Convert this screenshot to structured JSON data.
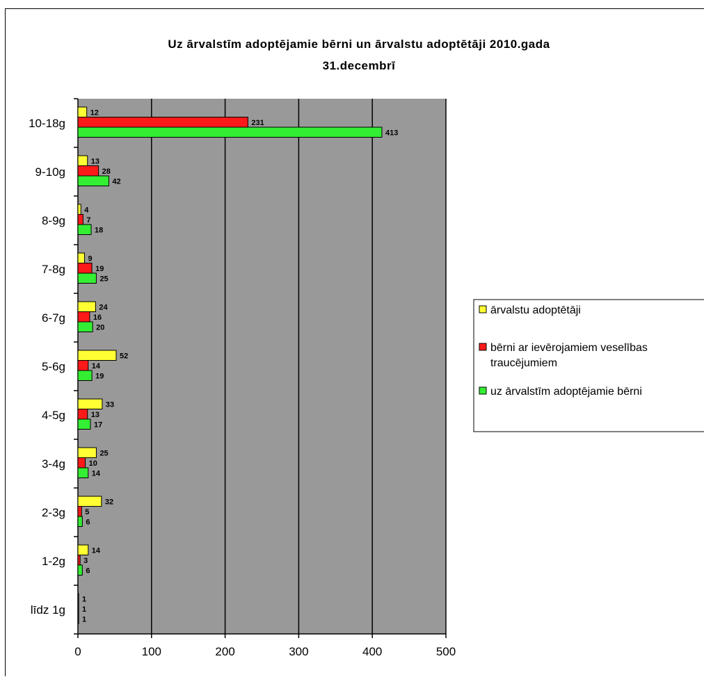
{
  "chart_data": {
    "type": "bar",
    "orientation": "horizontal",
    "title_lines": [
      "Uz ārvalstīm adoptējamie bērni un ārvalstu adoptētāji 2010.gada",
      "31.decembrī"
    ],
    "categories": [
      "10-18g",
      "9-10g",
      "8-9g",
      "7-8g",
      "6-7g",
      "5-6g",
      "4-5g",
      "3-4g",
      "2-3g",
      "1-2g",
      "līdz 1g"
    ],
    "series": [
      {
        "name": "ārvalstu adoptētāji",
        "color": "#ffff33",
        "values": [
          12,
          13,
          4,
          9,
          24,
          52,
          33,
          25,
          32,
          14,
          1
        ]
      },
      {
        "name": "bērni ar ievērojamiem veselības traucējumiem",
        "legend_lines": [
          "bērni ar ievērojamiem veselības",
          "traucējumiem"
        ],
        "color": "#ff1a1a",
        "values": [
          231,
          28,
          7,
          19,
          16,
          14,
          13,
          10,
          5,
          3,
          1
        ]
      },
      {
        "name": "uz ārvalstīm adoptējamie bērni",
        "color": "#33ee33",
        "values": [
          413,
          42,
          18,
          25,
          20,
          19,
          17,
          14,
          6,
          6,
          1
        ]
      }
    ],
    "xlim": [
      0,
      500
    ],
    "xticks": [
      0,
      100,
      200,
      300,
      400,
      500
    ],
    "xlabel": "",
    "ylabel": "",
    "plot_background": "#999999",
    "grid": "vertical major gridlines",
    "legend_position": "right"
  }
}
